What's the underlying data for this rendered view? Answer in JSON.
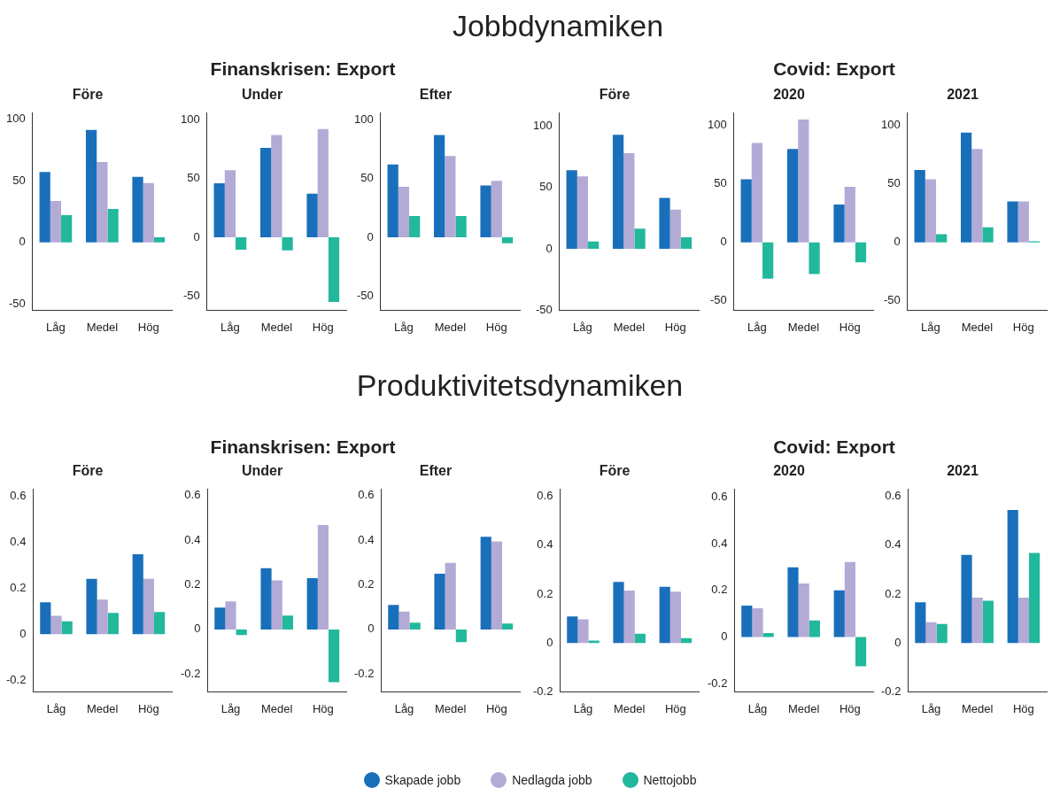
{
  "chart_data": [
    {
      "type": "bar",
      "title": "Före",
      "legend": "bottom",
      "annotations": [
        "Jobbdynamiken"
      ],
      "categories": [
        "Låg",
        "Medel",
        "Hög"
      ],
      "ylim": [
        -55,
        105
      ],
      "yticks": [
        -50,
        0,
        50,
        100
      ],
      "series": [
        {
          "name": "Skapade jobb",
          "color": "#1a6fba",
          "values": [
            57,
            91,
            53
          ]
        },
        {
          "name": "Nedlagda jobb",
          "color": "#b3aad6",
          "values": [
            33.5,
            65,
            48
          ]
        },
        {
          "name": "Nettojobb",
          "color": "#22b89c",
          "values": [
            22,
            27,
            4
          ]
        }
      ]
    },
    {
      "type": "bar",
      "title": "Under",
      "subtitle": "Finanskrisen: Export",
      "legend": "bottom",
      "categories": [
        "Låg",
        "Medel",
        "Hög"
      ],
      "ylim": [
        -62,
        106
      ],
      "yticks": [
        -50,
        0,
        50,
        100
      ],
      "series": [
        {
          "name": "Skapade jobb",
          "color": "#1a6fba",
          "values": [
            46,
            76,
            37
          ]
        },
        {
          "name": "Nedlagda jobb",
          "color": "#b3aad6",
          "values": [
            57,
            87,
            92
          ]
        },
        {
          "name": "Nettojobb",
          "color": "#22b89c",
          "values": [
            -10.5,
            -11,
            -55
          ]
        }
      ]
    },
    {
      "type": "bar",
      "title": "Efter",
      "legend": "bottom",
      "categories": [
        "Låg",
        "Medel",
        "Hög"
      ],
      "ylim": [
        -62,
        106
      ],
      "yticks": [
        -50,
        0,
        50,
        100
      ],
      "series": [
        {
          "name": "Skapade jobb",
          "color": "#1a6fba",
          "values": [
            62,
            87,
            44
          ]
        },
        {
          "name": "Nedlagda jobb",
          "color": "#b3aad6",
          "values": [
            43,
            69,
            48
          ]
        },
        {
          "name": "Nettojobb",
          "color": "#22b89c",
          "values": [
            18,
            18,
            -5
          ]
        }
      ]
    },
    {
      "type": "bar",
      "title": "Före",
      "legend": "bottom",
      "categories": [
        "Låg",
        "Medel",
        "Hög"
      ],
      "ylim": [
        -50,
        111
      ],
      "yticks": [
        -50,
        0,
        50,
        100
      ],
      "series": [
        {
          "name": "Skapade jobb",
          "color": "#1a6fba",
          "values": [
            64,
            93,
            41.5
          ]
        },
        {
          "name": "Nedlagda jobb",
          "color": "#b3aad6",
          "values": [
            59,
            78,
            32
          ]
        },
        {
          "name": "Nettojobb",
          "color": "#22b89c",
          "values": [
            6,
            16.5,
            9.5
          ]
        }
      ]
    },
    {
      "type": "bar",
      "title": "2020",
      "subtitle": "Covid: Export",
      "legend": "bottom",
      "categories": [
        "Låg",
        "Medel",
        "Hög"
      ],
      "ylim": [
        -58,
        111
      ],
      "yticks": [
        -50,
        0,
        50,
        100
      ],
      "series": [
        {
          "name": "Skapade jobb",
          "color": "#1a6fba",
          "values": [
            54,
            80,
            32.5
          ]
        },
        {
          "name": "Nedlagda jobb",
          "color": "#b3aad6",
          "values": [
            85,
            105,
            47.5
          ]
        },
        {
          "name": "Nettojobb",
          "color": "#22b89c",
          "values": [
            -31,
            -27,
            -17
          ]
        }
      ]
    },
    {
      "type": "bar",
      "title": "2021",
      "legend": "bottom",
      "categories": [
        "Låg",
        "Medel",
        "Hög"
      ],
      "ylim": [
        -58,
        111
      ],
      "yticks": [
        -50,
        0,
        50,
        100
      ],
      "series": [
        {
          "name": "Skapade jobb",
          "color": "#1a6fba",
          "values": [
            62,
            94,
            35
          ]
        },
        {
          "name": "Nedlagda jobb",
          "color": "#b3aad6",
          "values": [
            54,
            80,
            35
          ]
        },
        {
          "name": "Nettojobb",
          "color": "#22b89c",
          "values": [
            7,
            13,
            1
          ]
        }
      ]
    },
    {
      "type": "bar",
      "title": "Före",
      "legend": "bottom",
      "annotations": [
        "Produktivitetsdynamiken"
      ],
      "categories": [
        "Låg",
        "Medel",
        "Hög"
      ],
      "ylim": [
        -0.25,
        0.63
      ],
      "yticks": [
        -0.2,
        0,
        0.2,
        0.4,
        0.6
      ],
      "series": [
        {
          "name": "Skapade jobb",
          "color": "#1a6fba",
          "values": [
            0.138,
            0.24,
            0.347
          ]
        },
        {
          "name": "Nedlagda jobb",
          "color": "#b3aad6",
          "values": [
            0.08,
            0.15,
            0.24
          ]
        },
        {
          "name": "Nettojobb",
          "color": "#22b89c",
          "values": [
            0.056,
            0.092,
            0.096
          ]
        }
      ]
    },
    {
      "type": "bar",
      "title": "Under",
      "subtitle": "Finanskrisen: Export",
      "legend": "bottom",
      "categories": [
        "Låg",
        "Medel",
        "Hög"
      ],
      "ylim": [
        -0.28,
        0.63
      ],
      "yticks": [
        -0.2,
        0,
        0.2,
        0.4,
        0.6
      ],
      "series": [
        {
          "name": "Skapade jobb",
          "color": "#1a6fba",
          "values": [
            0.098,
            0.274,
            0.23
          ]
        },
        {
          "name": "Nedlagda jobb",
          "color": "#b3aad6",
          "values": [
            0.126,
            0.22,
            0.468
          ]
        },
        {
          "name": "Nettojobb",
          "color": "#22b89c",
          "values": [
            -0.025,
            0.062,
            -0.237
          ]
        }
      ]
    },
    {
      "type": "bar",
      "title": "Efter",
      "legend": "bottom",
      "categories": [
        "Låg",
        "Medel",
        "Hög"
      ],
      "ylim": [
        -0.28,
        0.63
      ],
      "yticks": [
        -0.2,
        0,
        0.2,
        0.4,
        0.6
      ],
      "series": [
        {
          "name": "Skapade jobb",
          "color": "#1a6fba",
          "values": [
            0.11,
            0.25,
            0.415
          ]
        },
        {
          "name": "Nedlagda jobb",
          "color": "#b3aad6",
          "values": [
            0.08,
            0.298,
            0.395
          ]
        },
        {
          "name": "Nettojobb",
          "color": "#22b89c",
          "values": [
            0.03,
            -0.057,
            0.026
          ]
        }
      ]
    },
    {
      "type": "bar",
      "title": "Före",
      "legend": "bottom",
      "categories": [
        "Låg",
        "Medel",
        "Hög"
      ],
      "ylim": [
        -0.2,
        0.63
      ],
      "yticks": [
        -0.2,
        0,
        0.2,
        0.4,
        0.6
      ],
      "series": [
        {
          "name": "Skapade jobb",
          "color": "#1a6fba",
          "values": [
            0.108,
            0.25,
            0.23
          ]
        },
        {
          "name": "Nedlagda jobb",
          "color": "#b3aad6",
          "values": [
            0.097,
            0.214,
            0.21
          ]
        },
        {
          "name": "Nettojobb",
          "color": "#22b89c",
          "values": [
            0.01,
            0.038,
            0.02
          ]
        }
      ]
    },
    {
      "type": "bar",
      "title": "2020",
      "subtitle": "Covid: Export",
      "legend": "bottom",
      "categories": [
        "Låg",
        "Medel",
        "Hög"
      ],
      "ylim": [
        -0.235,
        0.635
      ],
      "yticks": [
        -0.2,
        0,
        0.2,
        0.4,
        0.6
      ],
      "series": [
        {
          "name": "Skapade jobb",
          "color": "#1a6fba",
          "values": [
            0.135,
            0.299,
            0.2
          ]
        },
        {
          "name": "Nedlagda jobb",
          "color": "#b3aad6",
          "values": [
            0.123,
            0.23,
            0.322
          ]
        },
        {
          "name": "Nettojobb",
          "color": "#22b89c",
          "values": [
            0.017,
            0.071,
            -0.125
          ]
        }
      ]
    },
    {
      "type": "bar",
      "title": "2021",
      "legend": "bottom",
      "categories": [
        "Låg",
        "Medel",
        "Hög"
      ],
      "ylim": [
        -0.2,
        0.63
      ],
      "yticks": [
        -0.2,
        0,
        0.2,
        0.4,
        0.6
      ],
      "series": [
        {
          "name": "Skapade jobb",
          "color": "#1a6fba",
          "values": [
            0.166,
            0.36,
            0.544
          ]
        },
        {
          "name": "Nedlagda jobb",
          "color": "#b3aad6",
          "values": [
            0.085,
            0.185,
            0.185
          ]
        },
        {
          "name": "Nettojobb",
          "color": "#22b89c",
          "values": [
            0.078,
            0.173,
            0.368
          ]
        }
      ]
    }
  ]
}
